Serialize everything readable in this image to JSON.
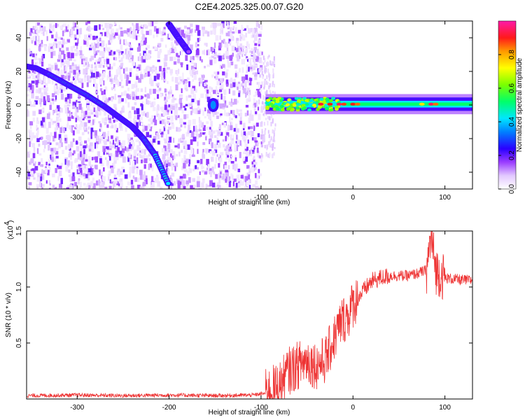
{
  "title": "C2E4.2025.325.00.07.G20",
  "chart_data": [
    {
      "type": "heatmap",
      "xlabel": "Height of straight line (km)",
      "ylabel": "Frequency (Hz)",
      "xlim": [
        -355,
        130
      ],
      "ylim": [
        -50,
        50
      ],
      "xticks": [
        -300,
        -200,
        -100,
        0,
        100
      ],
      "yticks": [
        -40,
        -20,
        0,
        20,
        40
      ],
      "colorbar": {
        "label": "Normalized spectral amplitude",
        "range": [
          0.0,
          1.0
        ],
        "ticks": [
          0.0,
          0.2,
          0.4,
          0.6,
          0.8
        ]
      },
      "features": [
        {
          "kind": "doppler_track",
          "x": [
            -355,
            -345,
            -330,
            -310,
            -290,
            -270,
            -255,
            -240,
            -228,
            -215,
            -200
          ],
          "y": [
            23,
            22,
            18,
            12,
            6,
            -1,
            -7,
            -13,
            -20,
            -30,
            -48
          ],
          "amplitude": 0.4
        },
        {
          "kind": "doppler_track",
          "x": [
            -200,
            -190,
            -178
          ],
          "y": [
            48,
            40,
            31
          ],
          "amplitude": 0.2
        },
        {
          "kind": "blob",
          "x": -152,
          "y": 0,
          "amplitude": 0.35
        },
        {
          "kind": "carrier_band",
          "x": [
            -95,
            130
          ],
          "y": 0.5,
          "amplitude_range": [
            0.3,
            1.0
          ]
        }
      ],
      "noise_region_x": [
        -355,
        -100
      ]
    },
    {
      "type": "line",
      "xlabel": "Height of straight line (km)",
      "ylabel": "SNR (10 * v/v)",
      "y_multiplier": "(x10",
      "y_multiplier_exp": "4",
      "xlim": [
        -355,
        130
      ],
      "ylim": [
        0.0,
        1.5
      ],
      "xticks": [
        -300,
        -200,
        -100,
        0,
        100
      ],
      "yticks": [
        0.5,
        1.0,
        1.5
      ],
      "y_tick_labels": [
        "0.5",
        "1.0",
        "1.5"
      ],
      "series": [
        {
          "color": "#ee3333",
          "x": [
            -355,
            -300,
            -250,
            -200,
            -150,
            -110,
            -95,
            -80,
            -70,
            -60,
            -50,
            -40,
            -30,
            -20,
            -12,
            -5,
            0,
            10,
            20,
            30,
            40,
            50,
            60,
            70,
            80,
            85,
            90,
            95,
            100,
            110,
            120,
            130
          ],
          "y": [
            0.03,
            0.035,
            0.03,
            0.035,
            0.03,
            0.035,
            0.05,
            0.12,
            0.25,
            0.3,
            0.35,
            0.3,
            0.35,
            0.55,
            0.7,
            0.75,
            0.85,
            0.95,
            1.05,
            1.08,
            1.1,
            1.1,
            1.1,
            1.12,
            1.15,
            1.45,
            1.15,
            1.12,
            1.08,
            1.07,
            1.06,
            1.06
          ]
        }
      ]
    }
  ]
}
